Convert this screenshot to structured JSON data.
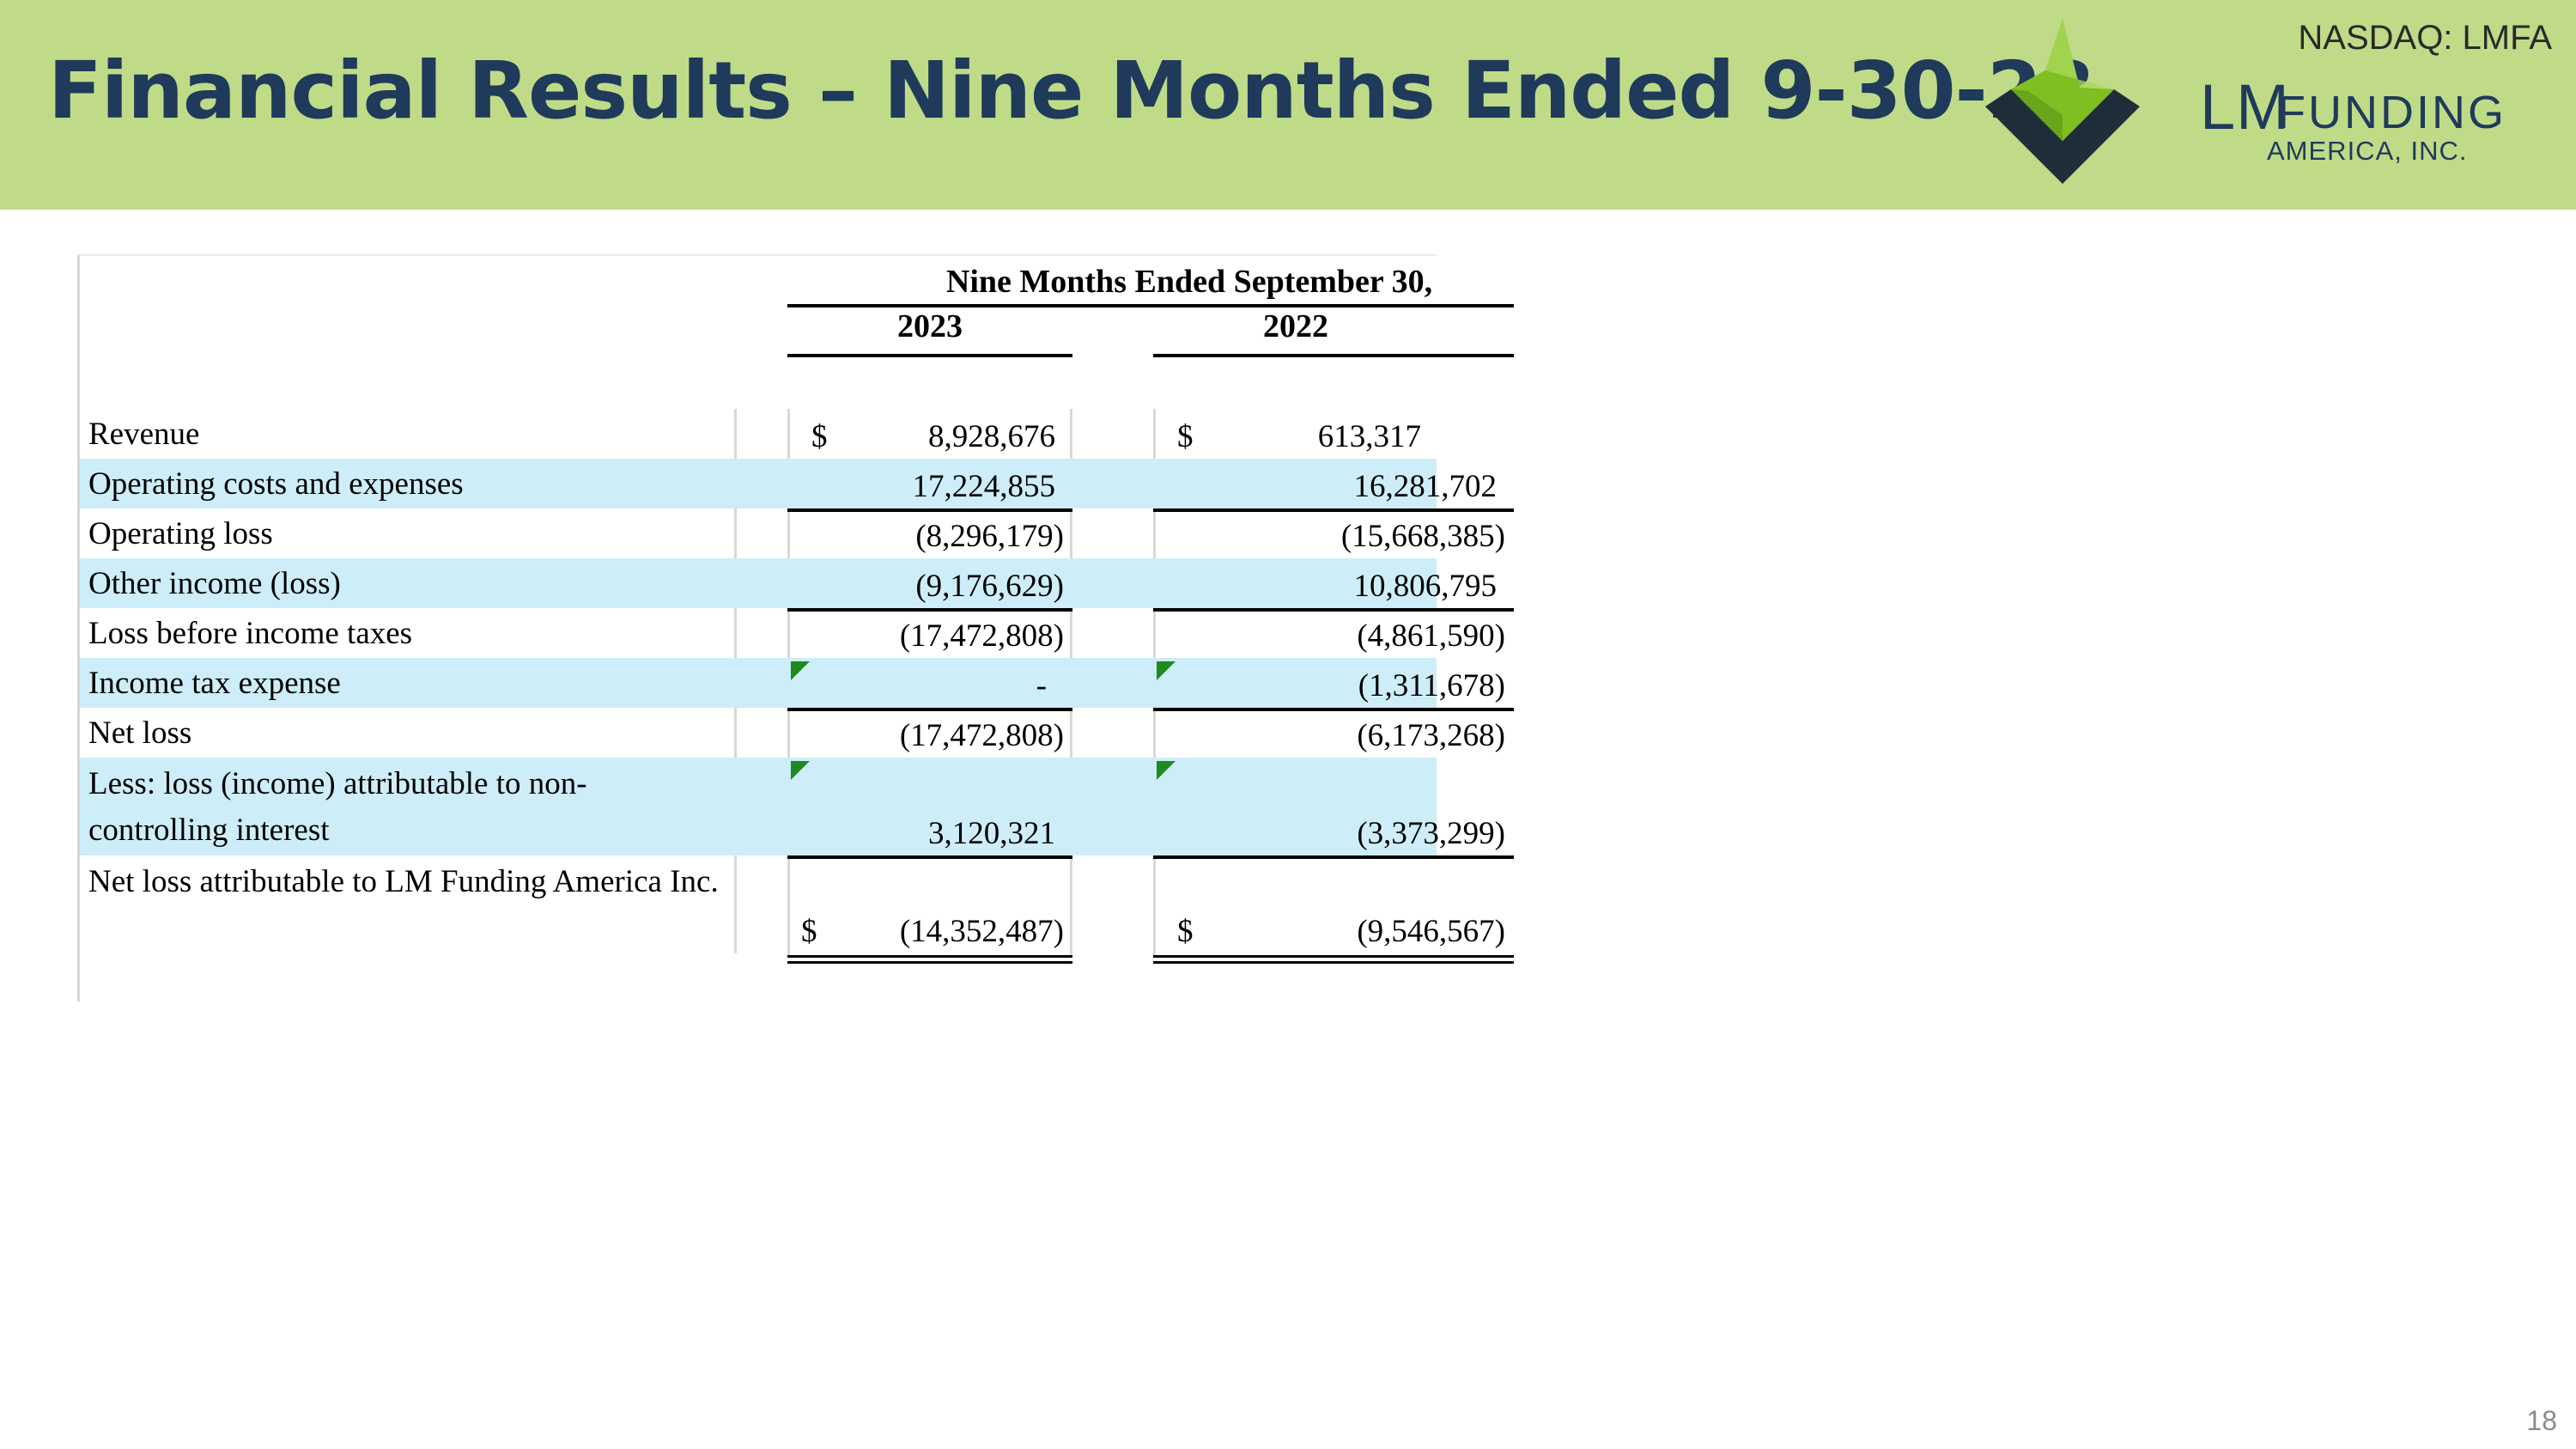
{
  "header": {
    "title": "Financial Results – Nine Months Ended 9-30-23",
    "ticker": "NASDAQ: LMFA",
    "logo": {
      "lm": "LM",
      "funding": "FUNDING",
      "sub": "AMERICA, INC.",
      "icon": "diamond-check-logo-icon",
      "colors": {
        "green": "#7fbf22",
        "dark": "#1f2d3a"
      }
    }
  },
  "table": {
    "column_header": "Nine Months Ended September 30,",
    "years": [
      "2023",
      "2022"
    ],
    "rows": [
      {
        "label": "Revenue",
        "v2023": "8,928,676",
        "v2022": "613,317",
        "cur2023": "$",
        "cur2022": "$"
      },
      {
        "label": "Operating costs and expenses",
        "v2023": "17,224,855",
        "v2022": "16,281,702"
      },
      {
        "label": "Operating loss",
        "v2023": "(8,296,179)",
        "v2022": "(15,668,385)"
      },
      {
        "label": "Other income (loss)",
        "v2023": "(9,176,629)",
        "v2022": "10,806,795"
      },
      {
        "label": "Loss before income taxes",
        "v2023": "(17,472,808)",
        "v2022": "(4,861,590)"
      },
      {
        "label": "Income tax expense",
        "v2023": "-",
        "v2022": "(1,311,678)"
      },
      {
        "label": "Net loss",
        "v2023": "(17,472,808)",
        "v2022": "(6,173,268)"
      },
      {
        "label": "Less: loss (income) attributable to non-controlling interest",
        "v2023": "3,120,321",
        "v2022": "(3,373,299)"
      },
      {
        "label": "Net loss attributable to LM Funding America Inc.",
        "v2023": "(14,352,487)",
        "v2022": "(9,546,567)",
        "cur2023": "$",
        "cur2022": "$"
      }
    ],
    "shade_color": "#cdeef8"
  },
  "footer": {
    "page_number": "18"
  }
}
